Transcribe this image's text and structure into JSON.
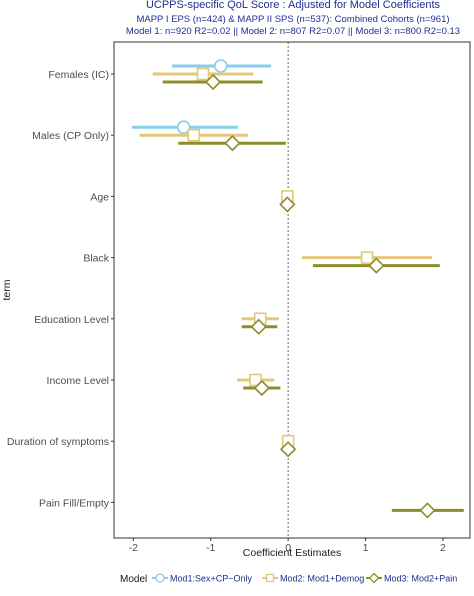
{
  "chart_data": {
    "type": "forest",
    "title": "UCPPS-specific QoL Score : Adjusted for Model Coefficients",
    "subtitle_lines": [
      "MAPP I EPS (n=424) & MAPP II SPS (n=537): Combined Cohorts (n=961)",
      "Model 1: n=920 R2=0.02 || Model 2: n=807 R2=0.07 || Model 3: n=800 R2=0.13"
    ],
    "xlabel": "Coefficient Estimates",
    "ylabel": "term",
    "xlim": [
      -2.25,
      2.35
    ],
    "xticks": [
      -2,
      -1,
      0,
      1,
      2
    ],
    "reference_line": 0,
    "categories": [
      "Females (IC)",
      "Males (CP Only)",
      "Age",
      "Black",
      "Education Level",
      "Income Level",
      "Duration of symptoms",
      "Pain Fill/Empty"
    ],
    "legend": {
      "title": "Model",
      "position": "bottom"
    },
    "series": [
      {
        "name": "Mod1:Sex+CP−Only",
        "marker": "circle",
        "color": "#87ceeb",
        "estimates": [
          {
            "term": "Females (IC)",
            "est": -0.87,
            "lo": -1.5,
            "hi": -0.22
          },
          {
            "term": "Males (CP Only)",
            "est": -1.35,
            "lo": -2.02,
            "hi": -0.65
          }
        ]
      },
      {
        "name": "Mod2: Mod1+Demog",
        "marker": "square",
        "color": "#e3c77a",
        "estimates": [
          {
            "term": "Females (IC)",
            "est": -1.1,
            "lo": -1.75,
            "hi": -0.45
          },
          {
            "term": "Males (CP Only)",
            "est": -1.22,
            "lo": -1.92,
            "hi": -0.52
          },
          {
            "term": "Age",
            "est": -0.01,
            "lo": -0.02,
            "hi": 0.0
          },
          {
            "term": "Black",
            "est": 1.02,
            "lo": 0.18,
            "hi": 1.86
          },
          {
            "term": "Education Level",
            "est": -0.36,
            "lo": -0.6,
            "hi": -0.12
          },
          {
            "term": "Income Level",
            "est": -0.42,
            "lo": -0.66,
            "hi": -0.18
          },
          {
            "term": "Duration of symptoms",
            "est": 0.0,
            "lo": -0.02,
            "hi": 0.02
          }
        ]
      },
      {
        "name": "Mod3: Mod2+Pain",
        "marker": "diamond",
        "color": "#8c8c28",
        "estimates": [
          {
            "term": "Females (IC)",
            "est": -0.97,
            "lo": -1.62,
            "hi": -0.33
          },
          {
            "term": "Males (CP Only)",
            "est": -0.72,
            "lo": -1.42,
            "hi": -0.03
          },
          {
            "term": "Age",
            "est": -0.01,
            "lo": -0.02,
            "hi": 0.0
          },
          {
            "term": "Black",
            "est": 1.14,
            "lo": 0.32,
            "hi": 1.96
          },
          {
            "term": "Education Level",
            "est": -0.38,
            "lo": -0.6,
            "hi": -0.14
          },
          {
            "term": "Income Level",
            "est": -0.34,
            "lo": -0.58,
            "hi": -0.1
          },
          {
            "term": "Duration of symptoms",
            "est": 0.0,
            "lo": -0.02,
            "hi": 0.02
          },
          {
            "term": "Pain Fill/Empty",
            "est": 1.8,
            "lo": 1.34,
            "hi": 2.27
          }
        ]
      }
    ]
  }
}
